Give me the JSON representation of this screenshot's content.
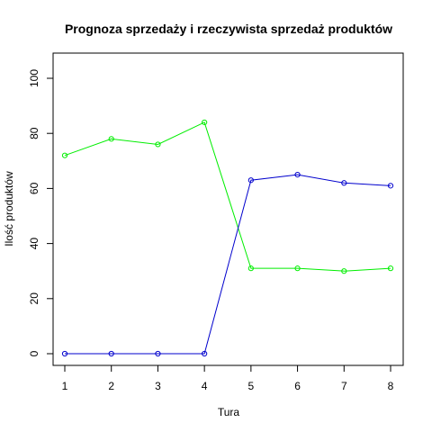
{
  "chart_data": {
    "type": "line",
    "title": "Prognoza sprzedaży i rzeczywista sprzedaż produktów",
    "xlabel": "Tura",
    "ylabel": "Ilość produktów",
    "x": [
      1,
      2,
      3,
      4,
      5,
      6,
      7,
      8
    ],
    "xlim": [
      1,
      8
    ],
    "ylim": [
      0,
      100
    ],
    "xticks": [
      1,
      2,
      3,
      4,
      5,
      6,
      7,
      8
    ],
    "yticks": [
      0,
      20,
      40,
      60,
      80,
      100
    ],
    "grid": false,
    "legend": "none",
    "series": [
      {
        "color": "#00ee00",
        "values": [
          72,
          78,
          76,
          84,
          31,
          31,
          30,
          31
        ]
      },
      {
        "color": "#0000cd",
        "values": [
          0,
          0,
          0,
          0,
          63,
          65,
          62,
          61
        ]
      }
    ]
  }
}
